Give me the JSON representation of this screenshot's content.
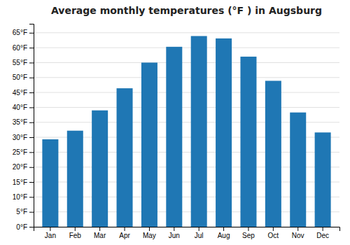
{
  "chart_data": {
    "type": "bar",
    "title": "Average monthly temperatures (°F ) in Augsburg",
    "categories": [
      "Jan",
      "Feb",
      "Mar",
      "Apr",
      "May",
      "Jun",
      "Jul",
      "Aug",
      "Sep",
      "Oct",
      "Nov",
      "Dec"
    ],
    "values": [
      29.3,
      32.2,
      39.0,
      46.4,
      55.0,
      60.3,
      63.9,
      63.1,
      57.0,
      48.9,
      38.3,
      31.6
    ],
    "ylim": [
      0,
      68
    ],
    "yticks": [
      {
        "value": 0,
        "label": "0°F"
      },
      {
        "value": 5,
        "label": "5°F"
      },
      {
        "value": 10,
        "label": "10°F"
      },
      {
        "value": 15,
        "label": "15°F"
      },
      {
        "value": 20,
        "label": "20°F"
      },
      {
        "value": 25,
        "label": "25°F"
      },
      {
        "value": 30,
        "label": "30°F"
      },
      {
        "value": 35,
        "label": "35°F"
      },
      {
        "value": 40,
        "label": "40°F"
      },
      {
        "value": 45,
        "label": "45°F"
      },
      {
        "value": 50,
        "label": "50°F"
      },
      {
        "value": 55,
        "label": "55°F"
      },
      {
        "value": 60,
        "label": "60°F"
      },
      {
        "value": 65,
        "label": "65°F"
      }
    ],
    "grid": true
  }
}
